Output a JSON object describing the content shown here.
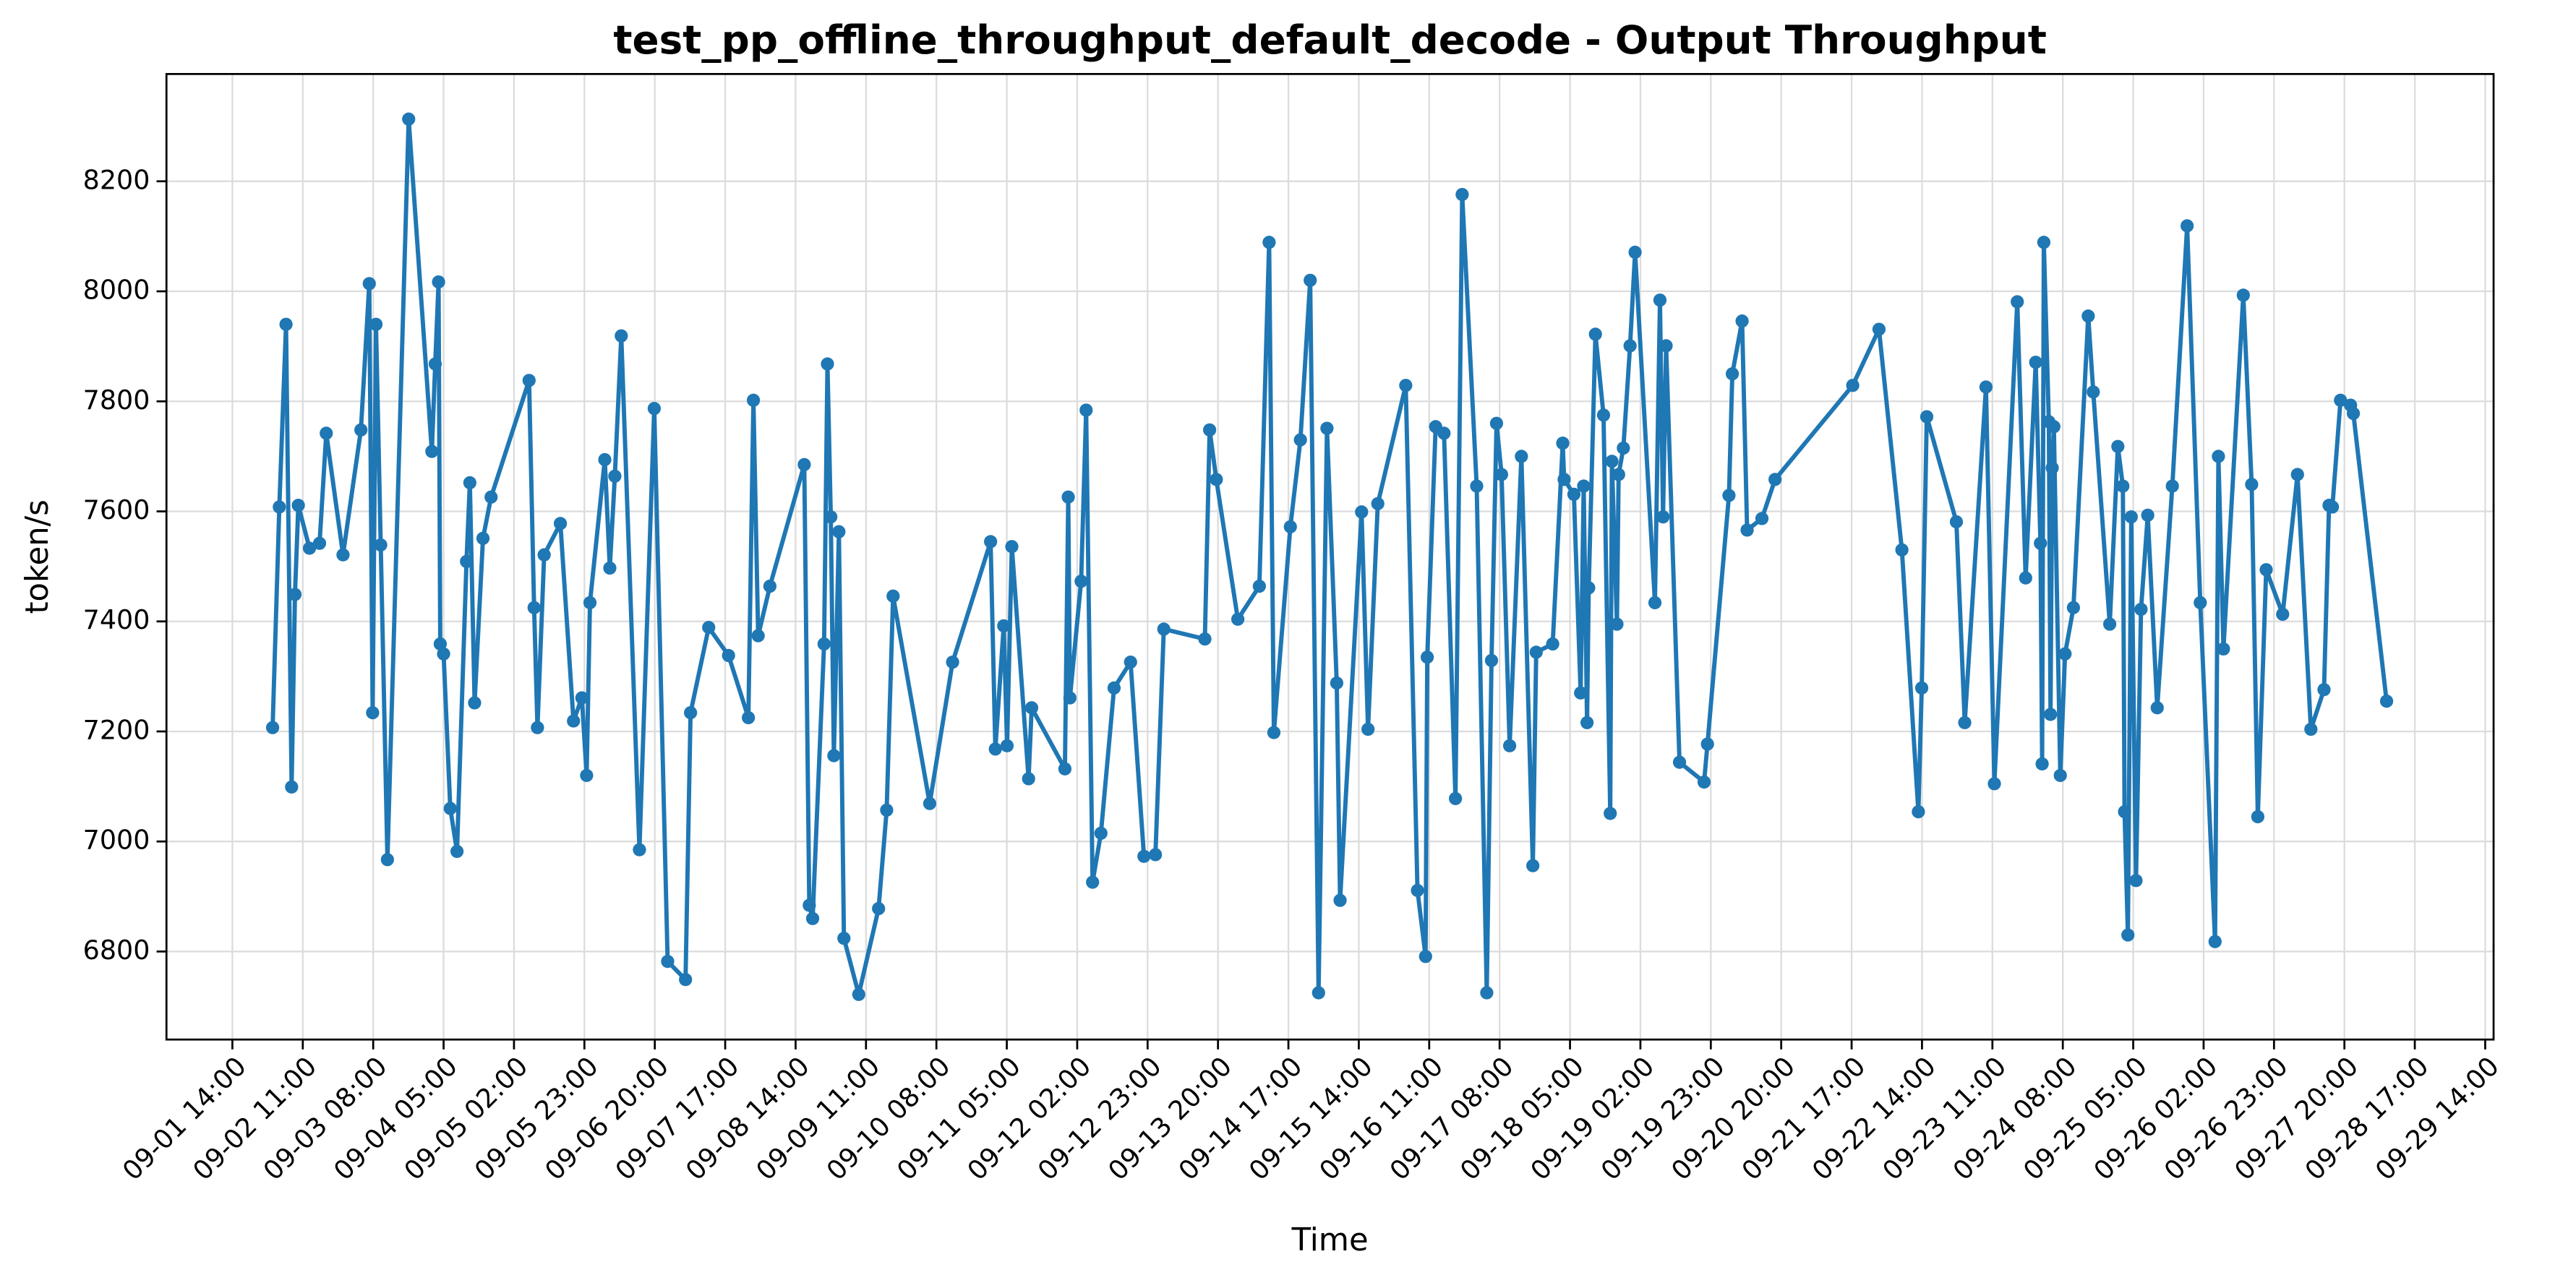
{
  "chart_data": {
    "type": "line",
    "title": "test_pp_offline_throughput_default_decode - Output Throughput",
    "x_label": "Time",
    "y_label": "token/s",
    "grid": true,
    "xlim": [
      "08-31 18:20",
      "09-29 16:30"
    ],
    "xticks": [
      "09-01 14:00",
      "09-02 11:00",
      "09-03 08:00",
      "09-04 05:00",
      "09-05 02:00",
      "09-05 23:00",
      "09-06 20:00",
      "09-07 17:00",
      "09-08 14:00",
      "09-09 11:00",
      "09-10 08:00",
      "09-11 05:00",
      "09-12 02:00",
      "09-12 23:00",
      "09-13 20:00",
      "09-14 17:00",
      "09-15 14:00",
      "09-16 11:00",
      "09-17 08:00",
      "09-18 05:00",
      "09-19 02:00",
      "09-19 23:00",
      "09-20 20:00",
      "09-21 17:00",
      "09-22 14:00",
      "09-23 11:00",
      "09-24 08:00",
      "09-25 05:00",
      "09-26 02:00",
      "09-26 23:00",
      "09-27 20:00",
      "09-28 17:00",
      "09-29 14:00"
    ],
    "ylim": [
      6640,
      8395
    ],
    "yticks": [
      6800,
      7000,
      7200,
      7400,
      7600,
      7800,
      8000,
      8200
    ],
    "x": [
      "09-02 02:00",
      "09-02 04:00",
      "09-02 06:00",
      "09-02 07:40",
      "09-02 08:40",
      "09-02 09:40",
      "09-02 13:00",
      "09-02 16:00",
      "09-02 18:00",
      "09-02 23:00",
      "09-03 04:20",
      "09-03 06:50",
      "09-03 07:50",
      "09-03 08:50",
      "09-03 10:15",
      "09-03 12:15",
      "09-03 18:35",
      "09-04 01:30",
      "09-04 02:30",
      "09-04 03:30",
      "09-04 04:00",
      "09-04 05:00",
      "09-04 07:00",
      "09-04 09:00",
      "09-04 11:50",
      "09-04 12:50",
      "09-04 14:15",
      "09-04 16:45",
      "09-04 19:10",
      "09-05 06:30",
      "09-05 08:00",
      "09-05 09:00",
      "09-05 11:00",
      "09-05 15:50",
      "09-05 19:45",
      "09-05 22:15",
      "09-05 23:40",
      "09-06 00:40",
      "09-06 05:05",
      "09-06 06:35",
      "09-06 08:05",
      "09-06 10:00",
      "09-06 15:25",
      "09-06 19:50",
      "09-06 23:50",
      "09-07 05:10",
      "09-07 06:40",
      "09-07 12:05",
      "09-07 18:00",
      "09-07 23:55",
      "09-08 01:25",
      "09-08 02:50",
      "09-08 06:20",
      "09-08 16:35",
      "09-08 18:05",
      "09-08 19:05",
      "09-08 22:30",
      "09-08 23:30",
      "09-09 00:30",
      "09-09 01:25",
      "09-09 02:55",
      "09-09 04:25",
      "09-09 08:50",
      "09-09 14:45",
      "09-09 17:10",
      "09-09 19:05",
      "09-10 06:00",
      "09-10 12:50",
      "09-11 00:10",
      "09-11 01:35",
      "09-11 04:05",
      "09-11 05:05",
      "09-11 06:30",
      "09-11 11:30",
      "09-11 12:25",
      "09-11 22:20",
      "09-11 23:20",
      "09-11 23:50",
      "09-12 03:10",
      "09-12 04:40",
      "09-12 06:35",
      "09-12 09:05",
      "09-12 13:00",
      "09-12 17:55",
      "09-12 21:55",
      "09-13 01:20",
      "09-13 03:50",
      "09-13 16:05",
      "09-13 17:30",
      "09-13 19:30",
      "09-14 01:55",
      "09-14 08:20",
      "09-14 11:15",
      "09-14 12:40",
      "09-14 17:35",
      "09-14 20:35",
      "09-14 23:30",
      "09-15 02:00",
      "09-15 04:30",
      "09-15 07:25",
      "09-15 08:25",
      "09-15 14:50",
      "09-15 16:45",
      "09-15 19:40",
      "09-16 04:00",
      "09-16 07:30",
      "09-16 09:55",
      "09-16 10:25",
      "09-16 12:55",
      "09-16 15:25",
      "09-16 18:50",
      "09-16 20:50",
      "09-17 01:10",
      "09-17 04:10",
      "09-17 05:35",
      "09-17 07:05",
      "09-17 08:35",
      "09-17 11:00",
      "09-17 14:30",
      "09-17 17:55",
      "09-17 18:55",
      "09-17 23:50",
      "09-18 02:50",
      "09-18 03:15",
      "09-18 06:10",
      "09-18 08:10",
      "09-18 09:05",
      "09-18 10:05",
      "09-18 10:35",
      "09-18 12:35",
      "09-18 15:00",
      "09-18 17:00",
      "09-18 17:30",
      "09-18 19:00",
      "09-18 19:30",
      "09-18 20:55",
      "09-18 22:55",
      "09-19 00:25",
      "09-19 06:20",
      "09-19 07:50",
      "09-19 08:45",
      "09-19 09:40",
      "09-19 13:40",
      "09-19 21:00",
      "09-19 22:00",
      "09-20 04:25",
      "09-20 05:25",
      "09-20 08:20",
      "09-20 09:50",
      "09-20 14:15",
      "09-20 18:10",
      "09-21 17:20",
      "09-22 01:10",
      "09-22 08:00",
      "09-22 12:55",
      "09-22 13:55",
      "09-22 15:25",
      "09-23 00:15",
      "09-23 02:45",
      "09-23 09:05",
      "09-23 11:35",
      "09-23 18:25",
      "09-23 20:55",
      "09-23 23:55",
      "09-24 01:20",
      "09-24 01:50",
      "09-24 02:20",
      "09-24 03:50",
      "09-24 04:20",
      "09-24 04:50",
      "09-24 05:20",
      "09-24 07:15",
      "09-24 08:40",
      "09-24 11:10",
      "09-24 15:35",
      "09-24 17:05",
      "09-24 22:00",
      "09-25 00:25",
      "09-25 01:55",
      "09-25 02:25",
      "09-25 03:25",
      "09-25 04:25",
      "09-25 05:50",
      "09-25 07:20",
      "09-25 09:20",
      "09-25 12:10",
      "09-25 16:40",
      "09-25 21:05",
      "09-26 01:00",
      "09-26 05:25",
      "09-26 06:25",
      "09-26 07:55",
      "09-26 13:50",
      "09-26 16:20",
      "09-26 18:10",
      "09-26 20:40",
      "09-27 01:35",
      "09-27 06:00",
      "09-27 10:00",
      "09-27 13:55",
      "09-27 15:25",
      "09-27 16:25",
      "09-27 18:50",
      "09-27 21:50",
      "09-27 22:40",
      "09-28 08:35"
    ],
    "series": [
      {
        "name": "Output Throughput",
        "color": "#1f77b4",
        "values": [
          7207,
          7608,
          7940,
          7099,
          7449,
          7611,
          7533,
          7542,
          7742,
          7521,
          7748,
          8014,
          7234,
          7940,
          7539,
          6967,
          8313,
          7709,
          7868,
          8017,
          7359,
          7341,
          7060,
          6982,
          7509,
          7652,
          7252,
          7551,
          7626,
          7838,
          7425,
          7207,
          7521,
          7578,
          7219,
          7261,
          7120,
          7434,
          7694,
          7497,
          7664,
          7919,
          6985,
          7787,
          6782,
          6749,
          7234,
          7389,
          7338,
          7225,
          7802,
          7374,
          7464,
          7685,
          6884,
          6860,
          7359,
          7868,
          7590,
          7156,
          7563,
          6824,
          6722,
          6878,
          7057,
          7446,
          7069,
          7326,
          7545,
          7168,
          7392,
          7174,
          7536,
          7114,
          7243,
          7132,
          7626,
          7261,
          7473,
          7784,
          6926,
          7015,
          7279,
          7326,
          6973,
          6976,
          7386,
          7368,
          7748,
          7658,
          7404,
          7464,
          8089,
          7198,
          7572,
          7730,
          8020,
          6725,
          7751,
          7288,
          6893,
          7599,
          7204,
          7614,
          7829,
          6911,
          6791,
          7335,
          7754,
          7742,
          7078,
          8176,
          7646,
          6725,
          7329,
          7760,
          7667,
          7174,
          7700,
          6956,
          7344,
          7359,
          7724,
          7658,
          7631,
          7270,
          7646,
          7216,
          7461,
          7922,
          7775,
          7051,
          7691,
          7395,
          7667,
          7715,
          7901,
          8071,
          7434,
          7984,
          7590,
          7901,
          7144,
          7108,
          7177,
          7629,
          7850,
          7946,
          7566,
          7587,
          7658,
          7829,
          7931,
          7530,
          7054,
          7279,
          7772,
          7581,
          7216,
          7826,
          7105,
          7981,
          7479,
          7871,
          7542,
          7141,
          8089,
          7763,
          7231,
          7679,
          7754,
          7120,
          7341,
          7425,
          7955,
          7817,
          7395,
          7718,
          7646,
          7054,
          6830,
          7590,
          6929,
          7422,
          7593,
          7243,
          7646,
          8119,
          7434,
          6818,
          7700,
          7350,
          7993,
          7649,
          7045,
          7494,
          7413,
          7667,
          7204,
          7276,
          7611,
          7608,
          7802,
          7793,
          7778,
          7255
        ]
      }
    ]
  }
}
